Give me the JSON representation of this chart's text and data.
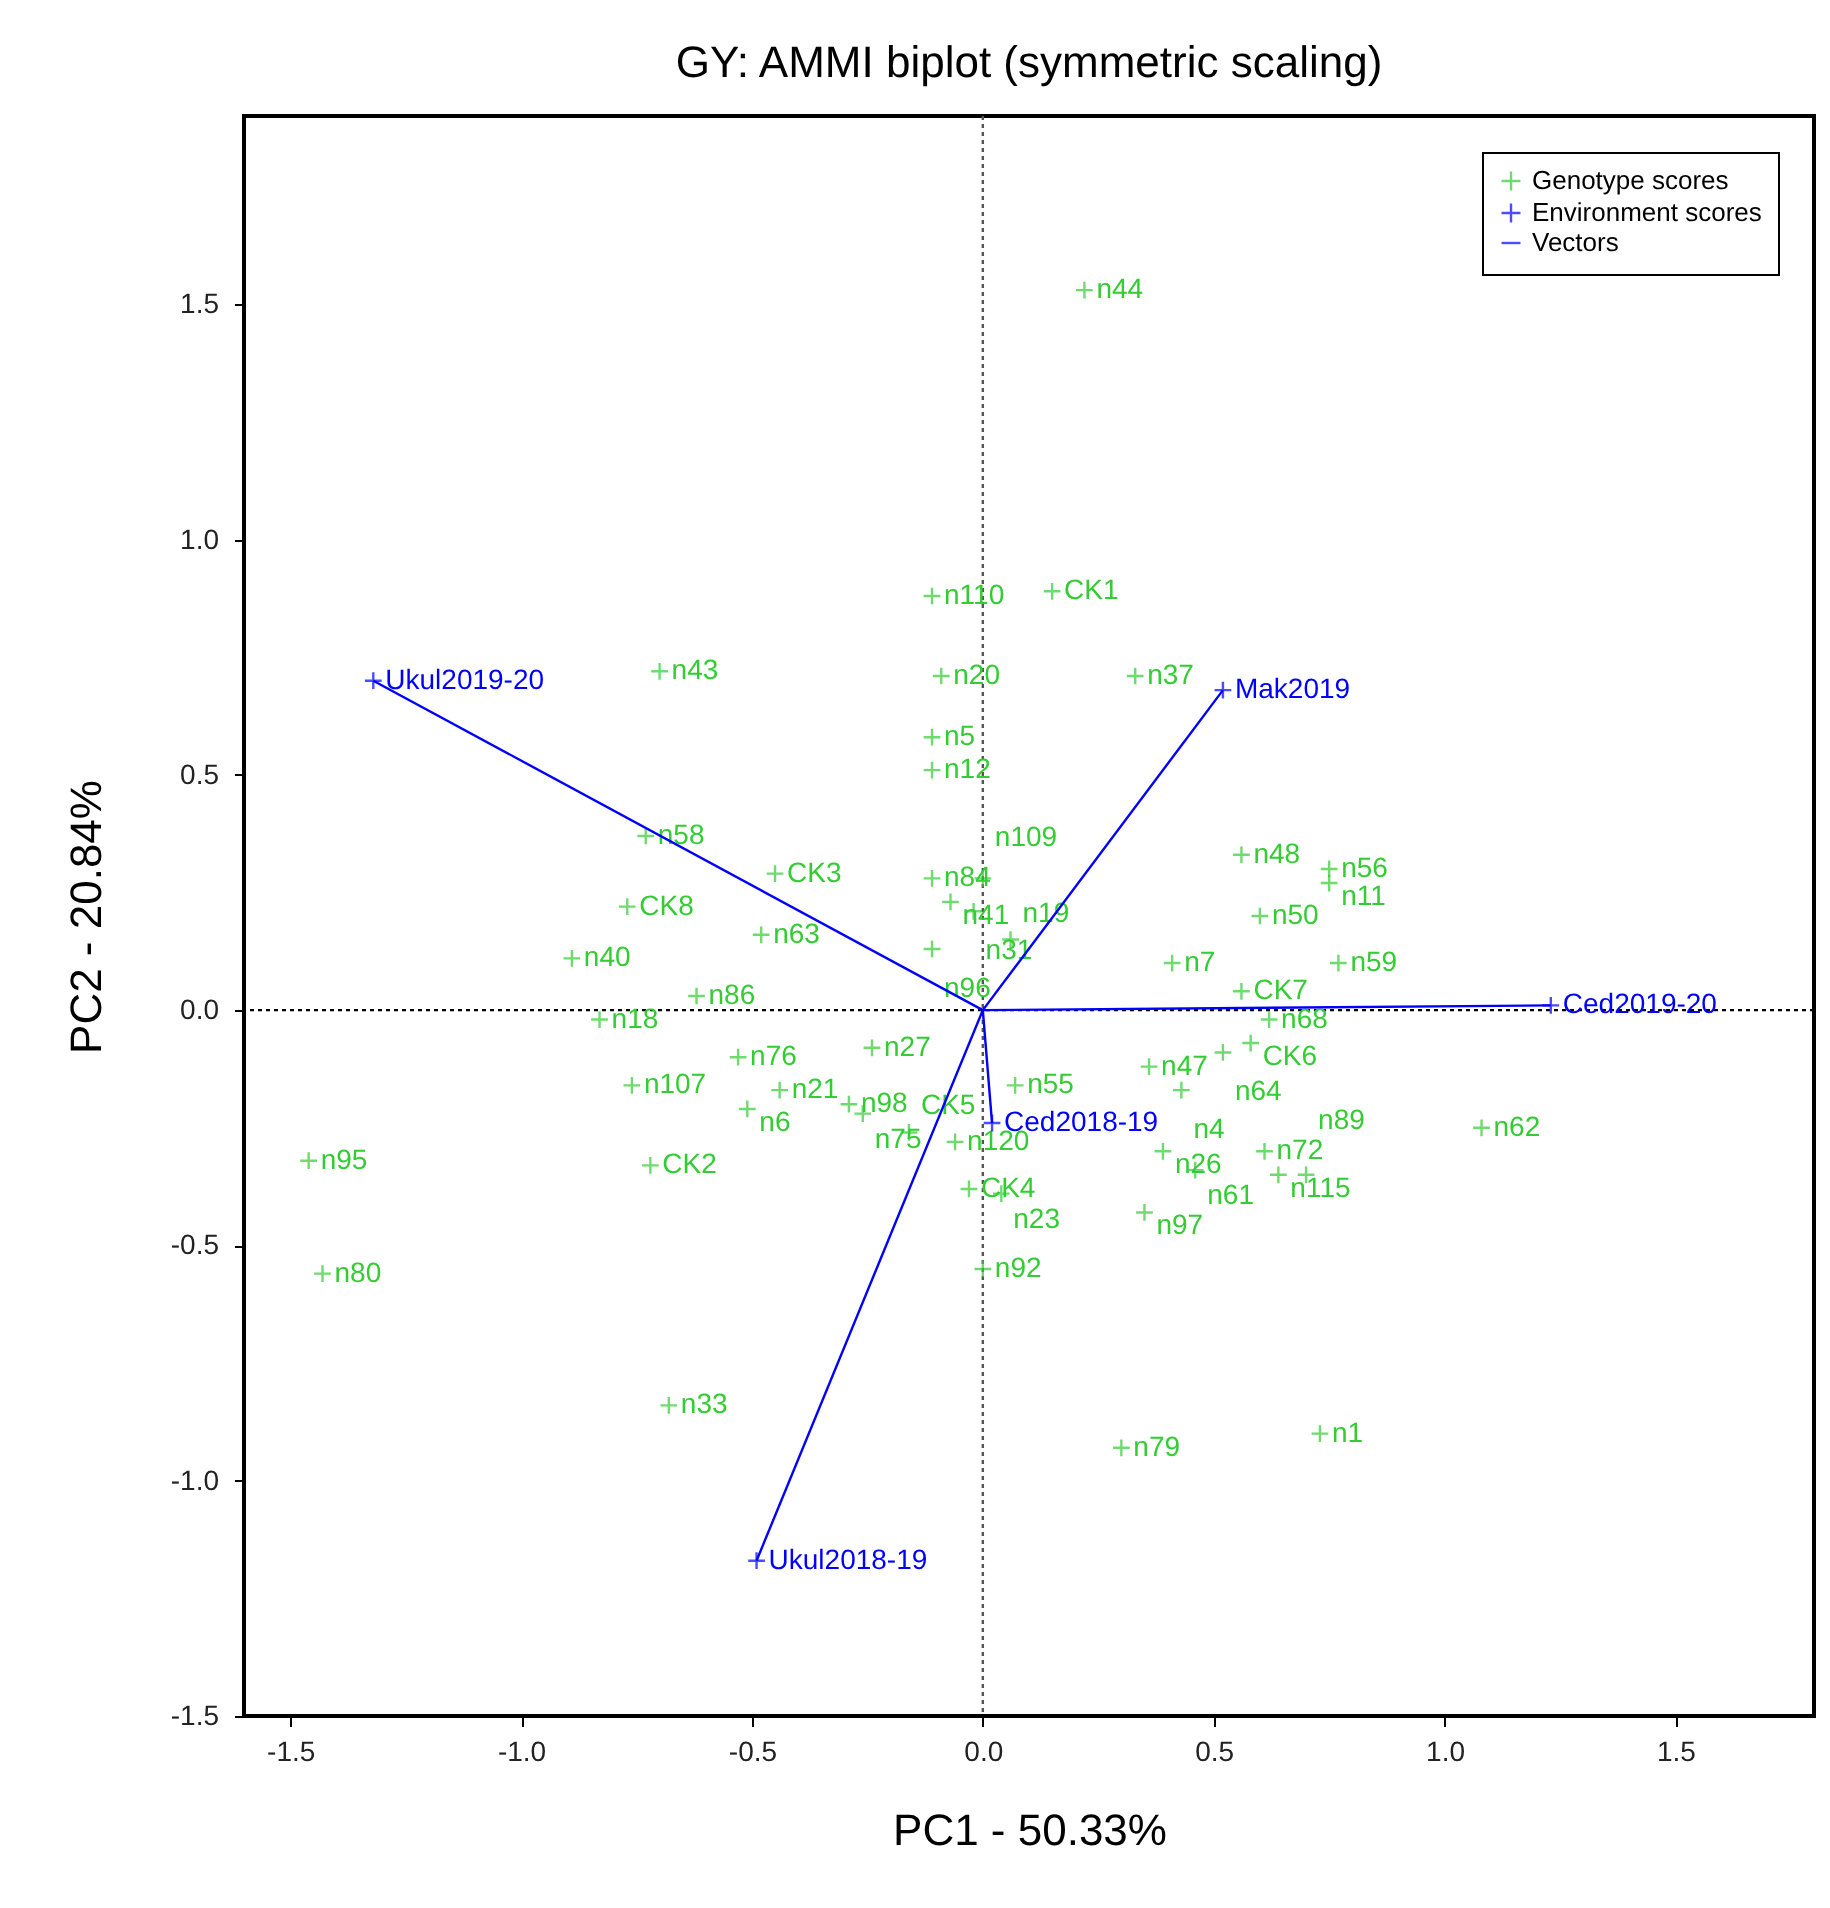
{
  "chart_data": {
    "type": "scatter",
    "title": "GY: AMMI biplot (symmetric scaling)",
    "xlabel": "PC1 - 50.33%",
    "ylabel": "PC2 - 20.84%",
    "xlim": [
      -1.6,
      1.8
    ],
    "ylim": [
      -1.5,
      1.9
    ],
    "xticks": [
      {
        "value": -1.5,
        "label": "-1.5"
      },
      {
        "value": -1,
        "label": "-1.0"
      },
      {
        "value": -0.5,
        "label": "-0.5"
      },
      {
        "value": 0,
        "label": "0.0"
      },
      {
        "value": 0.5,
        "label": "0.5"
      },
      {
        "value": 1,
        "label": "1.0"
      },
      {
        "value": 1.5,
        "label": "1.5"
      }
    ],
    "yticks": [
      {
        "value": -1.5,
        "label": "-1.5"
      },
      {
        "value": -1,
        "label": "-1.0"
      },
      {
        "value": -0.5,
        "label": "-0.5"
      },
      {
        "value": 0,
        "label": "0.0"
      },
      {
        "value": 0.5,
        "label": "0.5"
      },
      {
        "value": 1,
        "label": "1.0"
      },
      {
        "value": 1.5,
        "label": "1.5"
      }
    ],
    "legend": "top right",
    "ref_lines": [
      {
        "axis": "x",
        "value": 0,
        "line_style": "dotted",
        "color": "#555555"
      },
      {
        "axis": "y",
        "value": 0,
        "line_style": "dotted",
        "color": "#000000"
      }
    ],
    "series": [
      {
        "name": "Genotype scores",
        "marker": "cross",
        "color": "#33cc33",
        "x": [
          0.22,
          -0.11,
          0.15,
          -0.7,
          -0.09,
          0.33,
          -0.11,
          -0.11,
          -0.73,
          -0.45,
          -0.77,
          -0.48,
          -0.89,
          -0.62,
          -0.83,
          -0.53,
          -0.76,
          -0.44,
          -0.51,
          -0.72,
          -1.46,
          -1.43,
          -0.68,
          -0.11,
          0.0,
          -0.07,
          -0.02,
          -0.11,
          0.06,
          -0.24,
          0.07,
          -0.29,
          -0.26,
          -0.16,
          -0.06,
          -0.03,
          0.04,
          0.0,
          0.56,
          0.75,
          0.75,
          0.6,
          0.41,
          0.77,
          0.56,
          0.62,
          0.58,
          0.52,
          0.36,
          0.43,
          0.39,
          0.61,
          0.46,
          0.64,
          0.7,
          0.35,
          1.08,
          0.3,
          0.73
        ],
        "values": [
          1.53,
          0.88,
          0.89,
          0.72,
          0.71,
          0.71,
          0.58,
          0.51,
          0.37,
          0.29,
          0.22,
          0.16,
          0.11,
          0.03,
          -0.02,
          -0.1,
          -0.16,
          -0.17,
          -0.21,
          -0.33,
          -0.32,
          -0.56,
          -0.84,
          0.28,
          0.28,
          0.23,
          0.21,
          0.13,
          0.15,
          -0.08,
          -0.16,
          -0.2,
          -0.22,
          -0.26,
          -0.28,
          -0.38,
          -0.39,
          -0.55,
          0.33,
          0.3,
          0.27,
          0.2,
          0.1,
          0.1,
          0.04,
          -0.02,
          -0.07,
          -0.09,
          -0.12,
          -0.17,
          -0.3,
          -0.3,
          -0.34,
          -0.35,
          -0.35,
          -0.43,
          -0.25,
          -0.93,
          -0.9
        ],
        "value_labels": [
          "n44",
          "n110",
          "CK1",
          "n43",
          "n20",
          "n37",
          "n5",
          "n12",
          "n58",
          "CK3",
          "CK8",
          "n63",
          "n40",
          "n86",
          "n18",
          "n76",
          "n107",
          "n21",
          "n6",
          "CK2",
          "n95",
          "n80",
          "n33",
          "n84",
          "n109",
          "n41",
          "n31",
          "n96",
          "n19",
          "n27",
          "n55",
          "n98",
          "n75",
          "CK5",
          "n120",
          "CK4",
          "n23",
          "n92",
          "n48",
          "n56",
          "n11",
          "n50",
          "n7",
          "n59",
          "CK7",
          "n68",
          "CK6",
          "n64",
          "n47",
          "n4",
          "n26",
          "n72",
          "n61",
          "n115",
          "n89",
          "n97",
          "n62",
          "n79",
          "n1"
        ]
      },
      {
        "name": "Environment scores",
        "marker": "cross",
        "color": "#0000ff",
        "x": [
          -1.32,
          0.52,
          1.23,
          0.02,
          -0.49
        ],
        "values": [
          0.7,
          0.68,
          0.01,
          -0.24,
          -1.17
        ],
        "value_labels": [
          "Ukul2019-20",
          "Mak2019",
          "Ced2019-20",
          "Ced2018-19",
          "Ukul2018-19"
        ]
      },
      {
        "name": "Vectors",
        "type": "line",
        "color": "#0000ff",
        "x": [
          0,
          -1.32,
          null,
          0,
          0.52,
          null,
          0,
          1.23,
          null,
          0,
          0.02,
          null,
          0,
          -0.49
        ],
        "values": [
          0,
          0.7,
          null,
          0,
          0.68,
          null,
          0,
          0.01,
          null,
          0,
          -0.24,
          null,
          0,
          -1.17
        ]
      }
    ]
  }
}
